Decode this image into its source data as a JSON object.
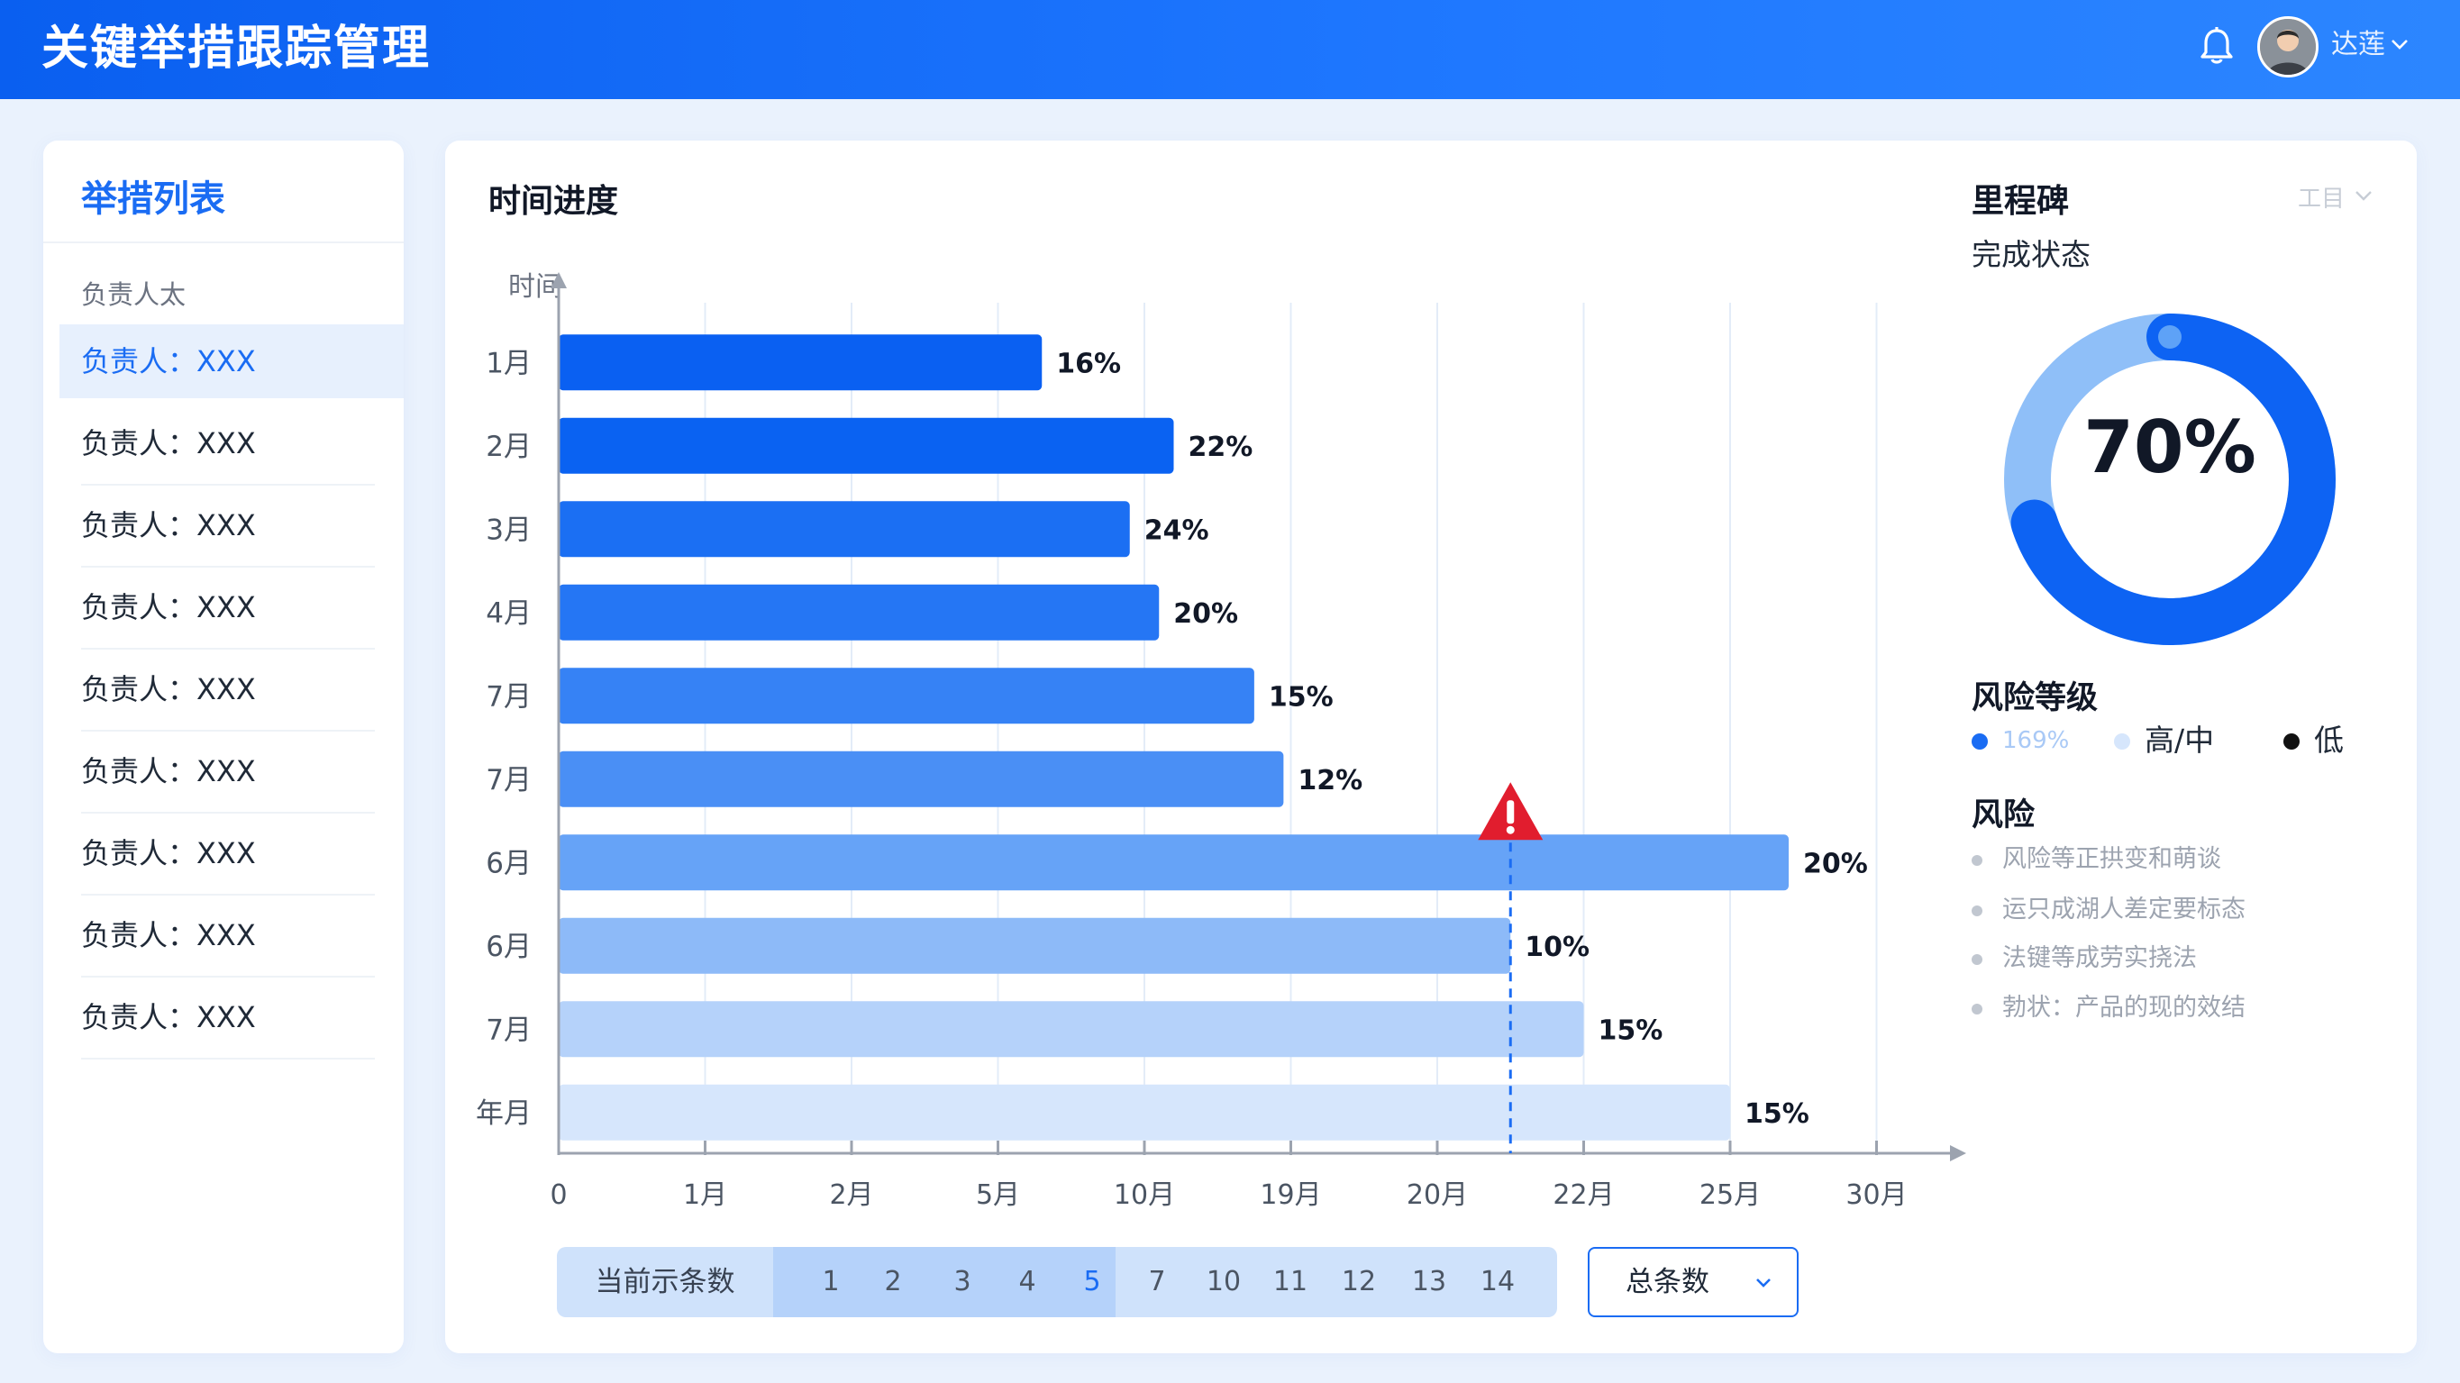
{
  "header": {
    "title": "关键举措跟踪管理",
    "user_name": "达莲"
  },
  "sidebar": {
    "title": "举措列表",
    "subtitle": "负责人太",
    "items": [
      {
        "label": "负责人：XXX",
        "active": true
      },
      {
        "label": "负责人：XXX"
      },
      {
        "label": "负责人：XXX"
      },
      {
        "label": "负责人：XXX"
      },
      {
        "label": "负责人：XXX"
      },
      {
        "label": "负责人：XXX"
      },
      {
        "label": "负责人：XXX"
      },
      {
        "label": "负责人：XXX"
      },
      {
        "label": "负责人：XXX"
      }
    ]
  },
  "main": {
    "title": "时间进度"
  },
  "chart_data": {
    "type": "bar",
    "orientation": "horizontal",
    "title": "时间进度",
    "ylabel": "时间",
    "categories": [
      "1月",
      "2月",
      "3月",
      "4月",
      "7月",
      "7月",
      "6月",
      "6月",
      "7月",
      "年月"
    ],
    "values": [
      16,
      22,
      24,
      20,
      15,
      12,
      20,
      10,
      15,
      15
    ],
    "value_labels": [
      "16%",
      "22%",
      "24%",
      "20%",
      "15%",
      "12%",
      "20%",
      "10%",
      "15%",
      "15%"
    ],
    "bar_extent_x": [
      3.3,
      4.2,
      3.9,
      4.1,
      4.75,
      4.95,
      8.4,
      6.5,
      7.0,
      8.0
    ],
    "x_ticks": [
      "0",
      "1月",
      "2月",
      "5月",
      "10月",
      "19月",
      "20月",
      "22月",
      "25月",
      "30月"
    ],
    "x_range": [
      0,
      9.5
    ],
    "marker": {
      "type": "warning",
      "x": 6.5,
      "row": 6
    },
    "bar_colors": [
      "#0a60f2",
      "#0a62f2",
      "#1b6ff3",
      "#2576f4",
      "#3682f5",
      "#4a8ff5",
      "#66a3f7",
      "#8dbaf8",
      "#b5d2fa",
      "#d6e6fc"
    ],
    "grid": true
  },
  "pagination": {
    "label": "当前示条数",
    "pages": [
      "1",
      "2",
      "3",
      "4",
      "5",
      "7",
      "10",
      "11",
      "12",
      "13",
      "14"
    ],
    "current": "5",
    "total_label": "总条数"
  },
  "milestone": {
    "title": "里程碑",
    "subtitle": "完成状态",
    "filter_label": "工目",
    "value": 0.7,
    "value_label": "70%"
  },
  "risk_level": {
    "title": "风险等级",
    "legend": [
      {
        "label": "169%",
        "color": "#1a6cf3"
      },
      {
        "label": "高/中",
        "color": "#d6e6fc"
      },
      {
        "label": "低",
        "color": "#111111"
      }
    ]
  },
  "risks": {
    "title": "风险",
    "items": [
      "风险等正拱变和萌谈",
      "运只成湖人差定要标态",
      "法键等成劳实挠法",
      "勃状：产品的现的效结"
    ]
  }
}
